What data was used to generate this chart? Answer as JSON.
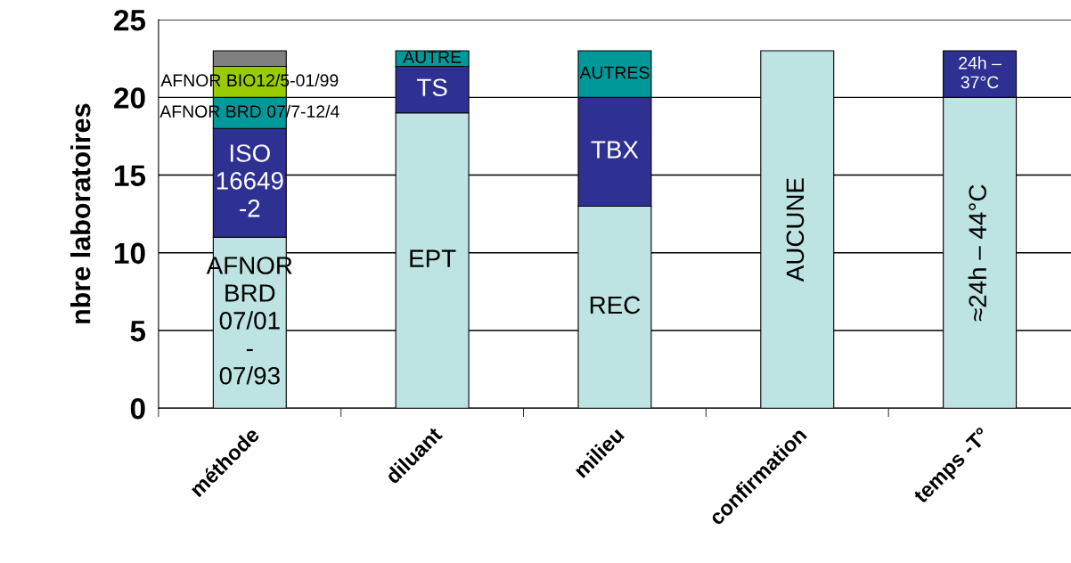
{
  "chart_data": {
    "type": "bar",
    "stacked": true,
    "ylabel": "nbre laboratoires",
    "categories": [
      "méthode",
      "diluant",
      "milieu",
      "confirmation",
      "temps -T°"
    ],
    "series": [
      {
        "name": "AFNOR\nBRD\n07/01\n-\n07/93",
        "color": "#bde3e3",
        "values": [
          11,
          null,
          null,
          null,
          null
        ]
      },
      {
        "name": "EPT",
        "color": "#bde3e3",
        "values": [
          null,
          19,
          null,
          null,
          null
        ]
      },
      {
        "name": "REC",
        "color": "#bde3e3",
        "values": [
          null,
          null,
          13,
          null,
          null
        ]
      },
      {
        "name": "AUCUNE",
        "color": "#bde3e3",
        "values": [
          null,
          null,
          null,
          23,
          null
        ]
      },
      {
        "name": "≈24h – 44°C",
        "color": "#bde3e3",
        "values": [
          null,
          null,
          null,
          null,
          20
        ]
      },
      {
        "name": "ISO\n16649\n-2",
        "color": "#2e3192",
        "values": [
          7,
          null,
          null,
          null,
          null
        ]
      },
      {
        "name": "TS",
        "color": "#2e3192",
        "values": [
          null,
          3,
          null,
          null,
          null
        ]
      },
      {
        "name": "TBX",
        "color": "#2e3192",
        "values": [
          null,
          null,
          7,
          null,
          null
        ]
      },
      {
        "name": "24h –\n37°C",
        "color": "#2e3192",
        "values": [
          null,
          null,
          null,
          null,
          3
        ]
      },
      {
        "name": "AFNOR BRD 07/7-12/4",
        "color": "#009999",
        "values": [
          2,
          null,
          null,
          null,
          null
        ]
      },
      {
        "name": "AUTRE",
        "color": "#009999",
        "values": [
          null,
          1,
          null,
          null,
          null
        ]
      },
      {
        "name": "AUTRES",
        "color": "#009999",
        "values": [
          null,
          null,
          3,
          null,
          null
        ]
      },
      {
        "name": "AFNOR BIO12/5-01/99",
        "color": "#99cc00",
        "values": [
          2,
          null,
          null,
          null,
          null
        ]
      },
      {
        "color": "#808080",
        "values": [
          1,
          null,
          null,
          null,
          null
        ]
      }
    ],
    "ylim": [
      0,
      25
    ],
    "yticks": [
      0,
      5,
      10,
      15,
      20,
      25
    ],
    "grid": "y",
    "legend": false
  }
}
